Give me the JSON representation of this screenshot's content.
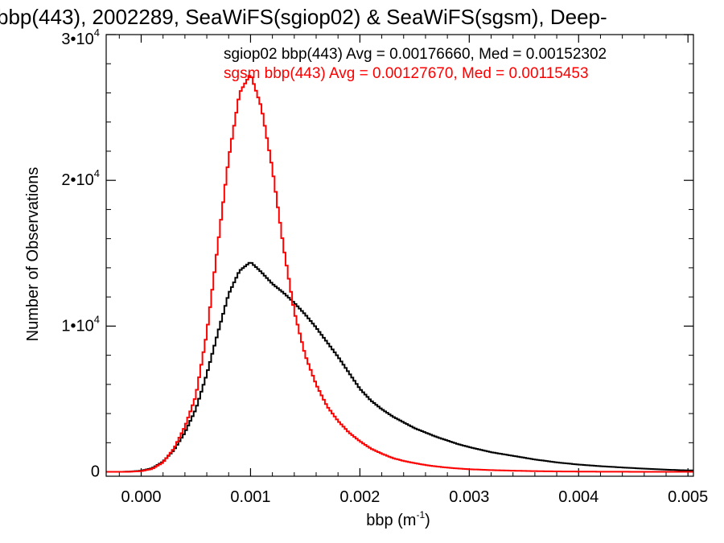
{
  "chart_data": {
    "type": "line",
    "title": "bbp(443), 2002289, SeaWiFS(sgiop02) & SeaWiFS(sgsm), Deep-",
    "xlabel": "bbp (m",
    "xlabel_sup": "-1",
    "xlabel_tail": ")",
    "ylabel": "Number of Observations",
    "xlim": [
      -0.00032,
      0.00505
    ],
    "ylim": [
      -300,
      30000
    ],
    "xticks": [
      0.0,
      0.001,
      0.002,
      0.003,
      0.004,
      0.005
    ],
    "xtick_labels": [
      "0.000",
      "0.001",
      "0.002",
      "0.003",
      "0.004",
      "0.005"
    ],
    "yticks": [
      {
        "value": 0,
        "base": "0",
        "exp": ""
      },
      {
        "value": 10000,
        "base": "1•10",
        "exp": "4"
      },
      {
        "value": 20000,
        "base": "2•10",
        "exp": "4"
      },
      {
        "value": 30000,
        "base": "3•10",
        "exp": "4"
      }
    ],
    "grid": false,
    "legend_position": "top-right",
    "series": [
      {
        "name": "sgiop02",
        "label": "sgiop02 bbp(443) Avg = 0.00176660, Med = 0.00152302",
        "color": "#000000",
        "x": [
          -0.0003,
          -0.0002,
          -0.0001,
          0.0,
          0.0001,
          0.0002,
          0.0003,
          0.0004,
          0.0005,
          0.0006,
          0.0007,
          0.0008,
          0.0009,
          0.001,
          0.0011,
          0.0012,
          0.0013,
          0.0014,
          0.0015,
          0.0016,
          0.0017,
          0.0018,
          0.0019,
          0.002,
          0.0021,
          0.0022,
          0.0023,
          0.0024,
          0.0025,
          0.0026,
          0.0027,
          0.0028,
          0.0029,
          0.003,
          0.0032,
          0.0034,
          0.0036,
          0.0038,
          0.004,
          0.0042,
          0.0044,
          0.0046,
          0.0048,
          0.005
        ],
        "y": [
          0,
          0,
          20,
          80,
          250,
          700,
          1500,
          2700,
          4300,
          6700,
          9500,
          12200,
          13800,
          14400,
          13700,
          12900,
          12300,
          11600,
          10800,
          9900,
          8900,
          7900,
          6800,
          5700,
          4900,
          4300,
          3800,
          3400,
          3000,
          2700,
          2400,
          2150,
          1900,
          1700,
          1350,
          1100,
          850,
          650,
          500,
          390,
          300,
          220,
          150,
          100
        ]
      },
      {
        "name": "sgsm",
        "label": "sgsm bbp(443) Avg = 0.00127670, Med = 0.00115453",
        "color": "#ff0000",
        "x": [
          -0.0003,
          -0.0002,
          -0.0001,
          0.0,
          0.0001,
          0.0002,
          0.0003,
          0.0004,
          0.0005,
          0.0006,
          0.0007,
          0.0008,
          0.0009,
          0.001,
          0.0011,
          0.0012,
          0.0013,
          0.0014,
          0.0015,
          0.0016,
          0.0017,
          0.0018,
          0.0019,
          0.002,
          0.0021,
          0.0022,
          0.0023,
          0.0024,
          0.0025,
          0.0026,
          0.0027,
          0.0028,
          0.0029,
          0.003,
          0.0032,
          0.0034,
          0.0036,
          0.0038,
          0.004,
          0.0042,
          0.0044,
          0.0046,
          0.0048,
          0.005
        ],
        "y": [
          0,
          0,
          10,
          50,
          200,
          650,
          1600,
          3100,
          5200,
          9500,
          15500,
          21500,
          26000,
          27300,
          25000,
          20800,
          15500,
          11000,
          8000,
          6000,
          4500,
          3500,
          2700,
          2100,
          1600,
          1250,
          950,
          750,
          600,
          470,
          370,
          290,
          230,
          180,
          120,
          80,
          50,
          30,
          20,
          12,
          8,
          5,
          3,
          2
        ]
      }
    ]
  }
}
